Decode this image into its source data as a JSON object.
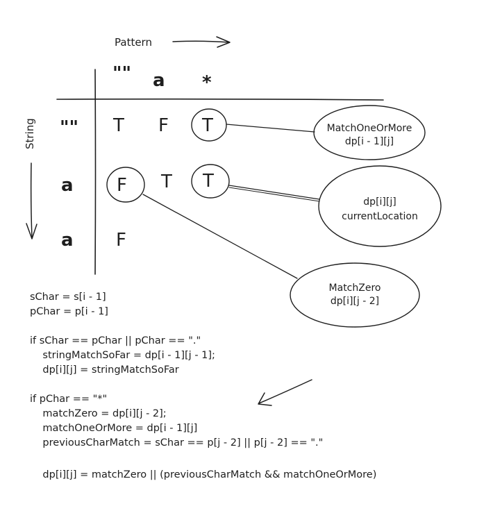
{
  "axes": {
    "pattern_label": "Pattern",
    "string_label": "String"
  },
  "table": {
    "columns": [
      "\"\"",
      "a",
      "*"
    ],
    "rows": [
      {
        "label": "\"\"",
        "cells": [
          "T",
          "F",
          "T"
        ]
      },
      {
        "label": "a",
        "cells": [
          "F",
          "T",
          "T"
        ]
      },
      {
        "label": "a",
        "cells": [
          "F",
          "",
          ""
        ]
      }
    ]
  },
  "callouts": {
    "match_one_or_more": {
      "title": "MatchOneOrMore",
      "expr": "dp[i - 1][j]"
    },
    "current_location": {
      "title": "dp[i][j]",
      "expr": "currentLocation"
    },
    "match_zero": {
      "title": "MatchZero",
      "expr": "dp[i][j - 2]"
    }
  },
  "code": {
    "lines": [
      "sChar = s[i - 1]",
      "pChar = p[i - 1]",
      "",
      "if sChar == pChar || pChar == \".\"",
      "    stringMatchSoFar = dp[i - 1][j - 1];",
      "    dp[i][j] = stringMatchSoFar",
      "",
      "if pChar == \"*\"",
      "    matchZero = dp[i][j - 2];",
      "    matchOneOrMore = dp[i - 1][j]",
      "    previousCharMatch = sChar == p[j - 2] || p[j - 2] == \".\"",
      "",
      "    dp[i][j] = matchZero || (previousCharMatch && matchOneOrMore)"
    ]
  }
}
